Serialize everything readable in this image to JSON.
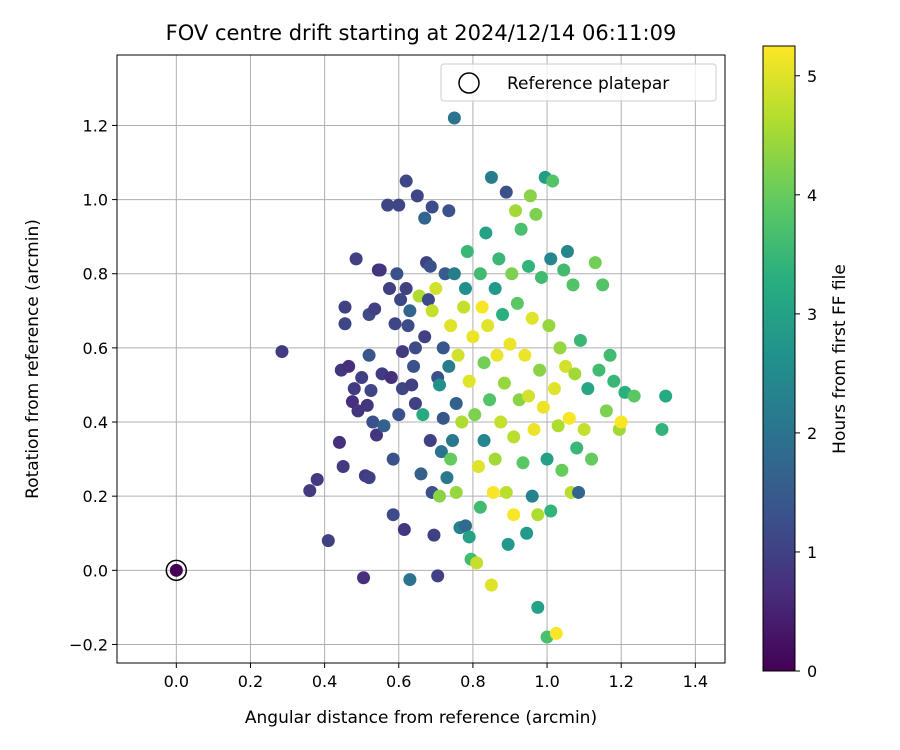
{
  "chart_data": {
    "type": "scatter",
    "title": "FOV centre drift starting at 2024/12/14 06:11:09",
    "xlabel": "Angular distance from reference (arcmin)",
    "ylabel": "Rotation from reference (arcmin)",
    "xlim": [
      -0.16,
      1.48
    ],
    "ylim": [
      -0.25,
      1.39
    ],
    "xticks": [
      "0.0",
      "0.2",
      "0.4",
      "0.6",
      "0.8",
      "1.0",
      "1.2",
      "1.4"
    ],
    "yticks": [
      "−0.2",
      "0.0",
      "0.2",
      "0.4",
      "0.6",
      "0.8",
      "1.0",
      "1.2"
    ],
    "xtick_values": [
      0.0,
      0.2,
      0.4,
      0.6,
      0.8,
      1.0,
      1.2,
      1.4
    ],
    "ytick_values": [
      -0.2,
      0.0,
      0.2,
      0.4,
      0.6,
      0.8,
      1.0,
      1.2
    ],
    "grid": true,
    "legend": {
      "location": "upper right",
      "label": "Reference platepar"
    },
    "reference_point": {
      "x": 0.0,
      "y": 0.0
    },
    "colorbar": {
      "label": "Hours from first FF file",
      "colormap": "viridis",
      "range": [
        0,
        5.25
      ],
      "ticks": [
        "0",
        "1",
        "2",
        "3",
        "4",
        "5"
      ],
      "tick_values": [
        0,
        1,
        2,
        3,
        4,
        5
      ]
    },
    "points": [
      {
        "x": 0.0,
        "y": 0.0,
        "hours": 0.0
      },
      {
        "x": 0.285,
        "y": 0.59,
        "hours": 0.9
      },
      {
        "x": 0.36,
        "y": 0.215,
        "hours": 0.9
      },
      {
        "x": 0.38,
        "y": 0.245,
        "hours": 0.9
      },
      {
        "x": 0.41,
        "y": 0.08,
        "hours": 1.0
      },
      {
        "x": 0.44,
        "y": 0.345,
        "hours": 0.7
      },
      {
        "x": 0.445,
        "y": 0.54,
        "hours": 0.8
      },
      {
        "x": 0.45,
        "y": 0.28,
        "hours": 0.9
      },
      {
        "x": 0.455,
        "y": 0.71,
        "hours": 1.0
      },
      {
        "x": 0.455,
        "y": 0.665,
        "hours": 1.1
      },
      {
        "x": 0.465,
        "y": 0.55,
        "hours": 0.7
      },
      {
        "x": 0.475,
        "y": 0.455,
        "hours": 0.7
      },
      {
        "x": 0.48,
        "y": 0.49,
        "hours": 0.9
      },
      {
        "x": 0.485,
        "y": 0.84,
        "hours": 1.0
      },
      {
        "x": 0.49,
        "y": 0.43,
        "hours": 0.8
      },
      {
        "x": 0.5,
        "y": 0.52,
        "hours": 1.0
      },
      {
        "x": 0.505,
        "y": -0.02,
        "hours": 0.7
      },
      {
        "x": 0.51,
        "y": 0.255,
        "hours": 0.9
      },
      {
        "x": 0.515,
        "y": 0.445,
        "hours": 0.8
      },
      {
        "x": 0.52,
        "y": 0.69,
        "hours": 1.2
      },
      {
        "x": 0.52,
        "y": 0.58,
        "hours": 1.4
      },
      {
        "x": 0.52,
        "y": 0.25,
        "hours": 1.0
      },
      {
        "x": 0.525,
        "y": 0.485,
        "hours": 1.1
      },
      {
        "x": 0.53,
        "y": 0.4,
        "hours": 1.3
      },
      {
        "x": 0.535,
        "y": 0.705,
        "hours": 1.0
      },
      {
        "x": 0.54,
        "y": 0.365,
        "hours": 0.8
      },
      {
        "x": 0.545,
        "y": 0.81,
        "hours": 0.7
      },
      {
        "x": 0.55,
        "y": 0.81,
        "hours": 0.8
      },
      {
        "x": 0.555,
        "y": 0.53,
        "hours": 0.9
      },
      {
        "x": 0.56,
        "y": 0.39,
        "hours": 1.6
      },
      {
        "x": 0.57,
        "y": 0.985,
        "hours": 1.1
      },
      {
        "x": 0.575,
        "y": 0.76,
        "hours": 1.0
      },
      {
        "x": 0.58,
        "y": 0.52,
        "hours": 0.7
      },
      {
        "x": 0.585,
        "y": 0.3,
        "hours": 1.3
      },
      {
        "x": 0.585,
        "y": 0.15,
        "hours": 1.2
      },
      {
        "x": 0.59,
        "y": 0.665,
        "hours": 1.1
      },
      {
        "x": 0.595,
        "y": 0.8,
        "hours": 1.3
      },
      {
        "x": 0.6,
        "y": 0.985,
        "hours": 1.1
      },
      {
        "x": 0.6,
        "y": 0.42,
        "hours": 1.3
      },
      {
        "x": 0.605,
        "y": 0.73,
        "hours": 1.1
      },
      {
        "x": 0.61,
        "y": 0.59,
        "hours": 0.9
      },
      {
        "x": 0.61,
        "y": 0.49,
        "hours": 1.1
      },
      {
        "x": 0.615,
        "y": 0.11,
        "hours": 0.8
      },
      {
        "x": 0.62,
        "y": 1.05,
        "hours": 1.1
      },
      {
        "x": 0.62,
        "y": 0.76,
        "hours": 1.0
      },
      {
        "x": 0.625,
        "y": 0.66,
        "hours": 1.2
      },
      {
        "x": 0.63,
        "y": -0.025,
        "hours": 2.0
      },
      {
        "x": 0.63,
        "y": 0.7,
        "hours": 1.7
      },
      {
        "x": 0.635,
        "y": 0.5,
        "hours": 1.0
      },
      {
        "x": 0.64,
        "y": 0.55,
        "hours": 1.3
      },
      {
        "x": 0.645,
        "y": 0.6,
        "hours": 1.2
      },
      {
        "x": 0.645,
        "y": 0.45,
        "hours": 1.0
      },
      {
        "x": 0.65,
        "y": 1.01,
        "hours": 1.1
      },
      {
        "x": 0.655,
        "y": 0.74,
        "hours": 4.6
      },
      {
        "x": 0.66,
        "y": 0.26,
        "hours": 1.6
      },
      {
        "x": 0.665,
        "y": 0.42,
        "hours": 3.2
      },
      {
        "x": 0.67,
        "y": 0.95,
        "hours": 1.7
      },
      {
        "x": 0.67,
        "y": 0.63,
        "hours": 1.0
      },
      {
        "x": 0.675,
        "y": 0.83,
        "hours": 1.0
      },
      {
        "x": 0.68,
        "y": 0.73,
        "hours": 1.2
      },
      {
        "x": 0.685,
        "y": 0.82,
        "hours": 1.3
      },
      {
        "x": 0.685,
        "y": 0.35,
        "hours": 1.0
      },
      {
        "x": 0.69,
        "y": 0.98,
        "hours": 1.2
      },
      {
        "x": 0.69,
        "y": 0.7,
        "hours": 4.8
      },
      {
        "x": 0.69,
        "y": 0.21,
        "hours": 1.3
      },
      {
        "x": 0.695,
        "y": 0.095,
        "hours": 1.0
      },
      {
        "x": 0.7,
        "y": 0.76,
        "hours": 4.9
      },
      {
        "x": 0.705,
        "y": 0.52,
        "hours": 1.3
      },
      {
        "x": 0.705,
        "y": -0.015,
        "hours": 1.0
      },
      {
        "x": 0.71,
        "y": 0.2,
        "hours": 4.3
      },
      {
        "x": 0.71,
        "y": 0.5,
        "hours": 2.6
      },
      {
        "x": 0.715,
        "y": 0.32,
        "hours": 2.0
      },
      {
        "x": 0.72,
        "y": 0.6,
        "hours": 1.4
      },
      {
        "x": 0.72,
        "y": 0.41,
        "hours": 1.4
      },
      {
        "x": 0.725,
        "y": 0.8,
        "hours": 1.5
      },
      {
        "x": 0.73,
        "y": 0.25,
        "hours": 2.1
      },
      {
        "x": 0.735,
        "y": 0.97,
        "hours": 1.3
      },
      {
        "x": 0.735,
        "y": 0.55,
        "hours": 2.2
      },
      {
        "x": 0.74,
        "y": 0.3,
        "hours": 4.0
      },
      {
        "x": 0.74,
        "y": 0.66,
        "hours": 5.0
      },
      {
        "x": 0.745,
        "y": 0.35,
        "hours": 2.1
      },
      {
        "x": 0.75,
        "y": 1.22,
        "hours": 2.0
      },
      {
        "x": 0.75,
        "y": 0.8,
        "hours": 2.2
      },
      {
        "x": 0.755,
        "y": 0.45,
        "hours": 1.6
      },
      {
        "x": 0.755,
        "y": 0.21,
        "hours": 4.4
      },
      {
        "x": 0.76,
        "y": 0.58,
        "hours": 4.9
      },
      {
        "x": 0.765,
        "y": 0.115,
        "hours": 2.3
      },
      {
        "x": 0.77,
        "y": 0.4,
        "hours": 4.6
      },
      {
        "x": 0.775,
        "y": 0.71,
        "hours": 4.8
      },
      {
        "x": 0.78,
        "y": 0.12,
        "hours": 1.8
      },
      {
        "x": 0.78,
        "y": 0.76,
        "hours": 2.6
      },
      {
        "x": 0.785,
        "y": 0.86,
        "hours": 3.5
      },
      {
        "x": 0.79,
        "y": 0.09,
        "hours": 3.0
      },
      {
        "x": 0.79,
        "y": 0.51,
        "hours": 5.0
      },
      {
        "x": 0.795,
        "y": 0.03,
        "hours": 3.6
      },
      {
        "x": 0.8,
        "y": 0.63,
        "hours": 5.1
      },
      {
        "x": 0.805,
        "y": 0.42,
        "hours": 4.2
      },
      {
        "x": 0.81,
        "y": 0.02,
        "hours": 4.8
      },
      {
        "x": 0.815,
        "y": 0.28,
        "hours": 5.0
      },
      {
        "x": 0.82,
        "y": 0.8,
        "hours": 3.6
      },
      {
        "x": 0.82,
        "y": 0.17,
        "hours": 3.6
      },
      {
        "x": 0.825,
        "y": 0.71,
        "hours": 5.2
      },
      {
        "x": 0.83,
        "y": 0.35,
        "hours": 2.4
      },
      {
        "x": 0.83,
        "y": 0.56,
        "hours": 4.1
      },
      {
        "x": 0.835,
        "y": 0.91,
        "hours": 3.0
      },
      {
        "x": 0.84,
        "y": 0.66,
        "hours": 5.0
      },
      {
        "x": 0.845,
        "y": 0.46,
        "hours": 3.8
      },
      {
        "x": 0.85,
        "y": 1.06,
        "hours": 2.2
      },
      {
        "x": 0.85,
        "y": -0.04,
        "hours": 5.0
      },
      {
        "x": 0.855,
        "y": 0.21,
        "hours": 5.2
      },
      {
        "x": 0.86,
        "y": 0.76,
        "hours": 2.8
      },
      {
        "x": 0.86,
        "y": 0.3,
        "hours": 4.5
      },
      {
        "x": 0.865,
        "y": 0.58,
        "hours": 5.1
      },
      {
        "x": 0.87,
        "y": 0.84,
        "hours": 3.5
      },
      {
        "x": 0.875,
        "y": 0.4,
        "hours": 4.8
      },
      {
        "x": 0.88,
        "y": 0.69,
        "hours": 3.3
      },
      {
        "x": 0.885,
        "y": 0.505,
        "hours": 4.4
      },
      {
        "x": 0.89,
        "y": 1.02,
        "hours": 1.3
      },
      {
        "x": 0.89,
        "y": 0.21,
        "hours": 4.7
      },
      {
        "x": 0.895,
        "y": 0.07,
        "hours": 2.8
      },
      {
        "x": 0.9,
        "y": 0.61,
        "hours": 5.1
      },
      {
        "x": 0.905,
        "y": 0.8,
        "hours": 4.2
      },
      {
        "x": 0.91,
        "y": 0.36,
        "hours": 4.7
      },
      {
        "x": 0.91,
        "y": 0.15,
        "hours": 5.2
      },
      {
        "x": 0.915,
        "y": 0.97,
        "hours": 4.5
      },
      {
        "x": 0.92,
        "y": 0.72,
        "hours": 3.9
      },
      {
        "x": 0.925,
        "y": 0.46,
        "hours": 4.3
      },
      {
        "x": 0.93,
        "y": 0.92,
        "hours": 3.7
      },
      {
        "x": 0.935,
        "y": 0.29,
        "hours": 3.9
      },
      {
        "x": 0.94,
        "y": 0.58,
        "hours": 5.1
      },
      {
        "x": 0.945,
        "y": 0.1,
        "hours": 2.8
      },
      {
        "x": 0.95,
        "y": 0.82,
        "hours": 3.4
      },
      {
        "x": 0.95,
        "y": 0.47,
        "hours": 4.9
      },
      {
        "x": 0.955,
        "y": 1.01,
        "hours": 4.3
      },
      {
        "x": 0.96,
        "y": 0.2,
        "hours": 2.3
      },
      {
        "x": 0.96,
        "y": 0.68,
        "hours": 5.0
      },
      {
        "x": 0.965,
        "y": 0.38,
        "hours": 5.1
      },
      {
        "x": 0.97,
        "y": 0.96,
        "hours": 4.2
      },
      {
        "x": 0.975,
        "y": 0.15,
        "hours": 4.6
      },
      {
        "x": 0.975,
        "y": -0.1,
        "hours": 3.0
      },
      {
        "x": 0.98,
        "y": 0.54,
        "hours": 4.3
      },
      {
        "x": 0.985,
        "y": 0.79,
        "hours": 3.6
      },
      {
        "x": 0.99,
        "y": 0.44,
        "hours": 5.1
      },
      {
        "x": 0.995,
        "y": 1.06,
        "hours": 2.9
      },
      {
        "x": 1.0,
        "y": 0.3,
        "hours": 3.0
      },
      {
        "x": 1.0,
        "y": -0.18,
        "hours": 3.7
      },
      {
        "x": 1.005,
        "y": 0.66,
        "hours": 4.4
      },
      {
        "x": 1.01,
        "y": 0.84,
        "hours": 2.4
      },
      {
        "x": 1.01,
        "y": 0.16,
        "hours": 3.4
      },
      {
        "x": 1.015,
        "y": 1.05,
        "hours": 3.8
      },
      {
        "x": 1.02,
        "y": 0.49,
        "hours": 5.0
      },
      {
        "x": 1.025,
        "y": -0.17,
        "hours": 5.2
      },
      {
        "x": 1.03,
        "y": 0.39,
        "hours": 4.6
      },
      {
        "x": 1.035,
        "y": 0.6,
        "hours": 4.4
      },
      {
        "x": 1.04,
        "y": 0.27,
        "hours": 4.0
      },
      {
        "x": 1.045,
        "y": 0.81,
        "hours": 3.6
      },
      {
        "x": 1.05,
        "y": 0.55,
        "hours": 4.9
      },
      {
        "x": 1.055,
        "y": 0.86,
        "hours": 2.4
      },
      {
        "x": 1.06,
        "y": 0.41,
        "hours": 5.2
      },
      {
        "x": 1.065,
        "y": 0.21,
        "hours": 4.7
      },
      {
        "x": 1.07,
        "y": 0.77,
        "hours": 3.8
      },
      {
        "x": 1.075,
        "y": 0.53,
        "hours": 4.5
      },
      {
        "x": 1.08,
        "y": 0.33,
        "hours": 3.5
      },
      {
        "x": 1.085,
        "y": 0.21,
        "hours": 1.7
      },
      {
        "x": 1.09,
        "y": 0.62,
        "hours": 3.5
      },
      {
        "x": 1.1,
        "y": 0.38,
        "hours": 4.8
      },
      {
        "x": 1.11,
        "y": 0.49,
        "hours": 3.1
      },
      {
        "x": 1.12,
        "y": 0.3,
        "hours": 4.0
      },
      {
        "x": 1.13,
        "y": 0.83,
        "hours": 4.1
      },
      {
        "x": 1.14,
        "y": 0.54,
        "hours": 3.6
      },
      {
        "x": 1.15,
        "y": 0.77,
        "hours": 3.8
      },
      {
        "x": 1.16,
        "y": 0.43,
        "hours": 4.2
      },
      {
        "x": 1.17,
        "y": 0.58,
        "hours": 3.6
      },
      {
        "x": 1.18,
        "y": 0.51,
        "hours": 3.5
      },
      {
        "x": 1.195,
        "y": 0.38,
        "hours": 4.5
      },
      {
        "x": 1.2,
        "y": 0.4,
        "hours": 5.2
      },
      {
        "x": 1.21,
        "y": 0.48,
        "hours": 3.3
      },
      {
        "x": 1.235,
        "y": 0.47,
        "hours": 3.9
      },
      {
        "x": 1.31,
        "y": 0.38,
        "hours": 3.4
      },
      {
        "x": 1.32,
        "y": 0.47,
        "hours": 3.2
      }
    ]
  }
}
